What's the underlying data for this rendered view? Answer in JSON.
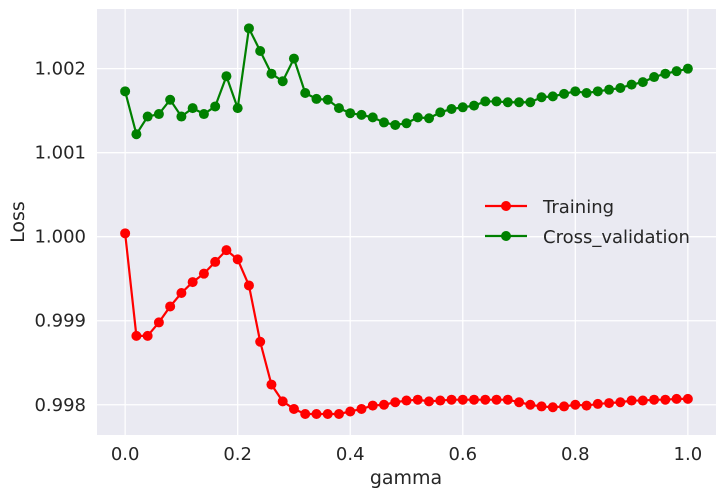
{
  "chart_data": {
    "type": "line",
    "title": "",
    "xlabel": "gamma",
    "ylabel": "Loss",
    "xlim": [
      -0.05,
      1.05
    ],
    "ylim": [
      0.99764,
      1.00271
    ],
    "xticks": [
      0.0,
      0.2,
      0.4,
      0.6,
      0.8,
      1.0
    ],
    "xtick_labels": [
      "0.0",
      "0.2",
      "0.4",
      "0.6",
      "0.8",
      "1.0"
    ],
    "yticks": [
      0.998,
      0.999,
      1.0,
      1.001,
      1.002
    ],
    "ytick_labels": [
      "0.998",
      "0.999",
      "1.000",
      "1.001",
      "1.002"
    ],
    "grid": true,
    "background": "#eaeaf2",
    "legend_position": "center-right",
    "x": [
      0.0,
      0.02,
      0.04,
      0.06,
      0.08,
      0.1,
      0.12,
      0.14,
      0.16,
      0.18,
      0.2,
      0.22,
      0.24,
      0.26,
      0.28,
      0.3,
      0.32,
      0.34,
      0.36,
      0.38,
      0.4,
      0.42,
      0.44,
      0.46,
      0.48,
      0.5,
      0.52,
      0.54,
      0.56,
      0.58,
      0.6,
      0.62,
      0.64,
      0.66,
      0.68,
      0.7,
      0.72,
      0.74,
      0.76,
      0.78,
      0.8,
      0.82,
      0.84,
      0.86,
      0.88,
      0.9,
      0.92,
      0.94,
      0.96,
      0.98,
      1.0
    ],
    "series": [
      {
        "name": "Training",
        "color": "#ff0000",
        "values": [
          1.00004,
          0.99882,
          0.99882,
          0.99898,
          0.99917,
          0.99933,
          0.99946,
          0.99956,
          0.9997,
          0.99984,
          0.99973,
          0.99942,
          0.99875,
          0.99824,
          0.99804,
          0.99795,
          0.99789,
          0.99789,
          0.99789,
          0.99789,
          0.99792,
          0.99795,
          0.99799,
          0.998,
          0.99803,
          0.99805,
          0.99806,
          0.99804,
          0.99805,
          0.99806,
          0.99806,
          0.99806,
          0.99806,
          0.99806,
          0.99806,
          0.99803,
          0.998,
          0.99798,
          0.99797,
          0.99798,
          0.998,
          0.99799,
          0.99801,
          0.99802,
          0.99803,
          0.99805,
          0.99805,
          0.99806,
          0.99806,
          0.99807,
          0.99807
        ]
      },
      {
        "name": "Cross_validation",
        "color": "#008000",
        "values": [
          1.00173,
          1.00122,
          1.00143,
          1.00146,
          1.00163,
          1.00143,
          1.00153,
          1.00146,
          1.00155,
          1.00191,
          1.00153,
          1.00248,
          1.00221,
          1.00194,
          1.00185,
          1.00212,
          1.00171,
          1.00164,
          1.00163,
          1.00153,
          1.00147,
          1.00145,
          1.00142,
          1.00136,
          1.00133,
          1.00135,
          1.00142,
          1.00141,
          1.00148,
          1.00152,
          1.00154,
          1.00156,
          1.00161,
          1.00161,
          1.0016,
          1.0016,
          1.0016,
          1.00166,
          1.00167,
          1.0017,
          1.00173,
          1.00171,
          1.00173,
          1.00175,
          1.00177,
          1.00181,
          1.00184,
          1.0019,
          1.00194,
          1.00197,
          1.002
        ]
      }
    ]
  }
}
